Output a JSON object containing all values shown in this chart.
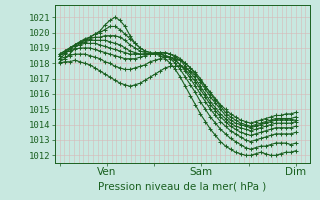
{
  "background_color": "#c8e8e0",
  "grid_color": "#d8b8b8",
  "line_color": "#1a6020",
  "ylabel_text": "Pression niveau de la mer( hPa )",
  "ylim": [
    1011.5,
    1021.8
  ],
  "yticks": [
    1012,
    1013,
    1014,
    1015,
    1016,
    1017,
    1018,
    1019,
    1020,
    1021
  ],
  "xtick_labels": [
    "",
    "Ven",
    "",
    "Sam",
    "",
    "Dim"
  ],
  "xtick_positions": [
    0,
    30,
    60,
    90,
    120,
    150
  ],
  "xlim": [
    -3,
    159
  ],
  "num_points": 48,
  "series": [
    [
      1018.1,
      1018.3,
      1018.6,
      1019.0,
      1019.3,
      1019.5,
      1019.7,
      1019.9,
      1020.1,
      1020.5,
      1020.8,
      1021.0,
      1020.8,
      1020.4,
      1019.8,
      1019.3,
      1019.0,
      1018.8,
      1018.7,
      1018.6,
      1018.5,
      1018.3,
      1018.0,
      1017.6,
      1017.1,
      1016.5,
      1015.9,
      1015.3,
      1014.7,
      1014.2,
      1013.7,
      1013.3,
      1012.9,
      1012.6,
      1012.4,
      1012.2,
      1012.1,
      1012.0,
      1012.0,
      1012.1,
      1012.2,
      1012.1,
      1012.0,
      1012.0,
      1012.1,
      1012.2,
      1012.2,
      1012.3
    ],
    [
      1018.3,
      1018.6,
      1018.9,
      1019.2,
      1019.4,
      1019.6,
      1019.7,
      1019.9,
      1020.0,
      1020.2,
      1020.4,
      1020.4,
      1020.2,
      1019.9,
      1019.6,
      1019.3,
      1019.0,
      1018.8,
      1018.7,
      1018.6,
      1018.6,
      1018.5,
      1018.3,
      1018.0,
      1017.6,
      1017.1,
      1016.6,
      1016.1,
      1015.5,
      1015.0,
      1014.5,
      1014.1,
      1013.7,
      1013.4,
      1013.1,
      1012.9,
      1012.7,
      1012.5,
      1012.4,
      1012.5,
      1012.6,
      1012.6,
      1012.7,
      1012.8,
      1012.8,
      1012.8,
      1012.7,
      1012.8
    ],
    [
      1018.5,
      1018.7,
      1019.0,
      1019.2,
      1019.4,
      1019.5,
      1019.6,
      1019.7,
      1019.7,
      1019.8,
      1019.8,
      1019.8,
      1019.7,
      1019.5,
      1019.2,
      1019.0,
      1018.8,
      1018.7,
      1018.6,
      1018.6,
      1018.6,
      1018.5,
      1018.4,
      1018.2,
      1017.9,
      1017.5,
      1017.0,
      1016.5,
      1016.0,
      1015.5,
      1015.0,
      1014.6,
      1014.2,
      1013.9,
      1013.6,
      1013.4,
      1013.2,
      1013.0,
      1012.9,
      1013.0,
      1013.1,
      1013.2,
      1013.3,
      1013.4,
      1013.4,
      1013.4,
      1013.4,
      1013.5
    ],
    [
      1018.6,
      1018.8,
      1019.0,
      1019.2,
      1019.3,
      1019.4,
      1019.5,
      1019.5,
      1019.5,
      1019.5,
      1019.4,
      1019.3,
      1019.2,
      1019.0,
      1018.8,
      1018.7,
      1018.6,
      1018.6,
      1018.6,
      1018.6,
      1018.6,
      1018.5,
      1018.4,
      1018.2,
      1017.9,
      1017.6,
      1017.2,
      1016.8,
      1016.3,
      1015.8,
      1015.3,
      1014.9,
      1014.5,
      1014.2,
      1013.9,
      1013.7,
      1013.5,
      1013.4,
      1013.3,
      1013.4,
      1013.5,
      1013.6,
      1013.7,
      1013.8,
      1013.8,
      1013.8,
      1013.8,
      1013.9
    ],
    [
      1018.6,
      1018.8,
      1019.0,
      1019.1,
      1019.2,
      1019.3,
      1019.3,
      1019.3,
      1019.2,
      1019.1,
      1019.0,
      1018.9,
      1018.8,
      1018.7,
      1018.6,
      1018.6,
      1018.6,
      1018.6,
      1018.6,
      1018.7,
      1018.7,
      1018.7,
      1018.6,
      1018.4,
      1018.2,
      1017.8,
      1017.4,
      1017.0,
      1016.5,
      1016.0,
      1015.5,
      1015.1,
      1014.7,
      1014.4,
      1014.1,
      1013.9,
      1013.8,
      1013.7,
      1013.6,
      1013.7,
      1013.8,
      1013.9,
      1014.0,
      1014.1,
      1014.1,
      1014.1,
      1014.1,
      1014.2
    ],
    [
      1018.5,
      1018.7,
      1018.8,
      1018.9,
      1019.0,
      1019.0,
      1019.0,
      1018.9,
      1018.8,
      1018.7,
      1018.6,
      1018.5,
      1018.4,
      1018.3,
      1018.3,
      1018.3,
      1018.4,
      1018.5,
      1018.6,
      1018.7,
      1018.7,
      1018.7,
      1018.6,
      1018.5,
      1018.3,
      1018.0,
      1017.7,
      1017.3,
      1016.8,
      1016.3,
      1015.8,
      1015.4,
      1015.0,
      1014.6,
      1014.3,
      1014.1,
      1014.0,
      1013.9,
      1013.8,
      1013.9,
      1014.0,
      1014.1,
      1014.2,
      1014.3,
      1014.3,
      1014.3,
      1014.3,
      1014.3
    ],
    [
      1018.3,
      1018.4,
      1018.5,
      1018.6,
      1018.6,
      1018.6,
      1018.5,
      1018.4,
      1018.3,
      1018.1,
      1018.0,
      1017.8,
      1017.7,
      1017.6,
      1017.6,
      1017.7,
      1017.8,
      1017.9,
      1018.1,
      1018.2,
      1018.3,
      1018.4,
      1018.4,
      1018.3,
      1018.2,
      1018.0,
      1017.7,
      1017.4,
      1017.0,
      1016.5,
      1016.0,
      1015.6,
      1015.2,
      1014.8,
      1014.5,
      1014.3,
      1014.1,
      1014.0,
      1013.9,
      1014.0,
      1014.1,
      1014.2,
      1014.3,
      1014.4,
      1014.4,
      1014.4,
      1014.4,
      1014.5
    ],
    [
      1018.0,
      1018.1,
      1018.1,
      1018.2,
      1018.1,
      1018.0,
      1017.9,
      1017.7,
      1017.5,
      1017.3,
      1017.1,
      1016.9,
      1016.7,
      1016.6,
      1016.5,
      1016.6,
      1016.7,
      1016.9,
      1017.1,
      1017.3,
      1017.5,
      1017.7,
      1017.8,
      1017.8,
      1017.8,
      1017.7,
      1017.5,
      1017.2,
      1016.9,
      1016.5,
      1016.1,
      1015.7,
      1015.3,
      1015.0,
      1014.7,
      1014.5,
      1014.3,
      1014.2,
      1014.1,
      1014.2,
      1014.3,
      1014.4,
      1014.5,
      1014.6,
      1014.6,
      1014.7,
      1014.7,
      1014.8
    ]
  ],
  "marker": "+",
  "marker_size": 2.5,
  "line_width": 0.8,
  "fontsize_ylabel": 7.5,
  "fontsize_ytick": 6.5,
  "fontsize_xtick": 7.5
}
